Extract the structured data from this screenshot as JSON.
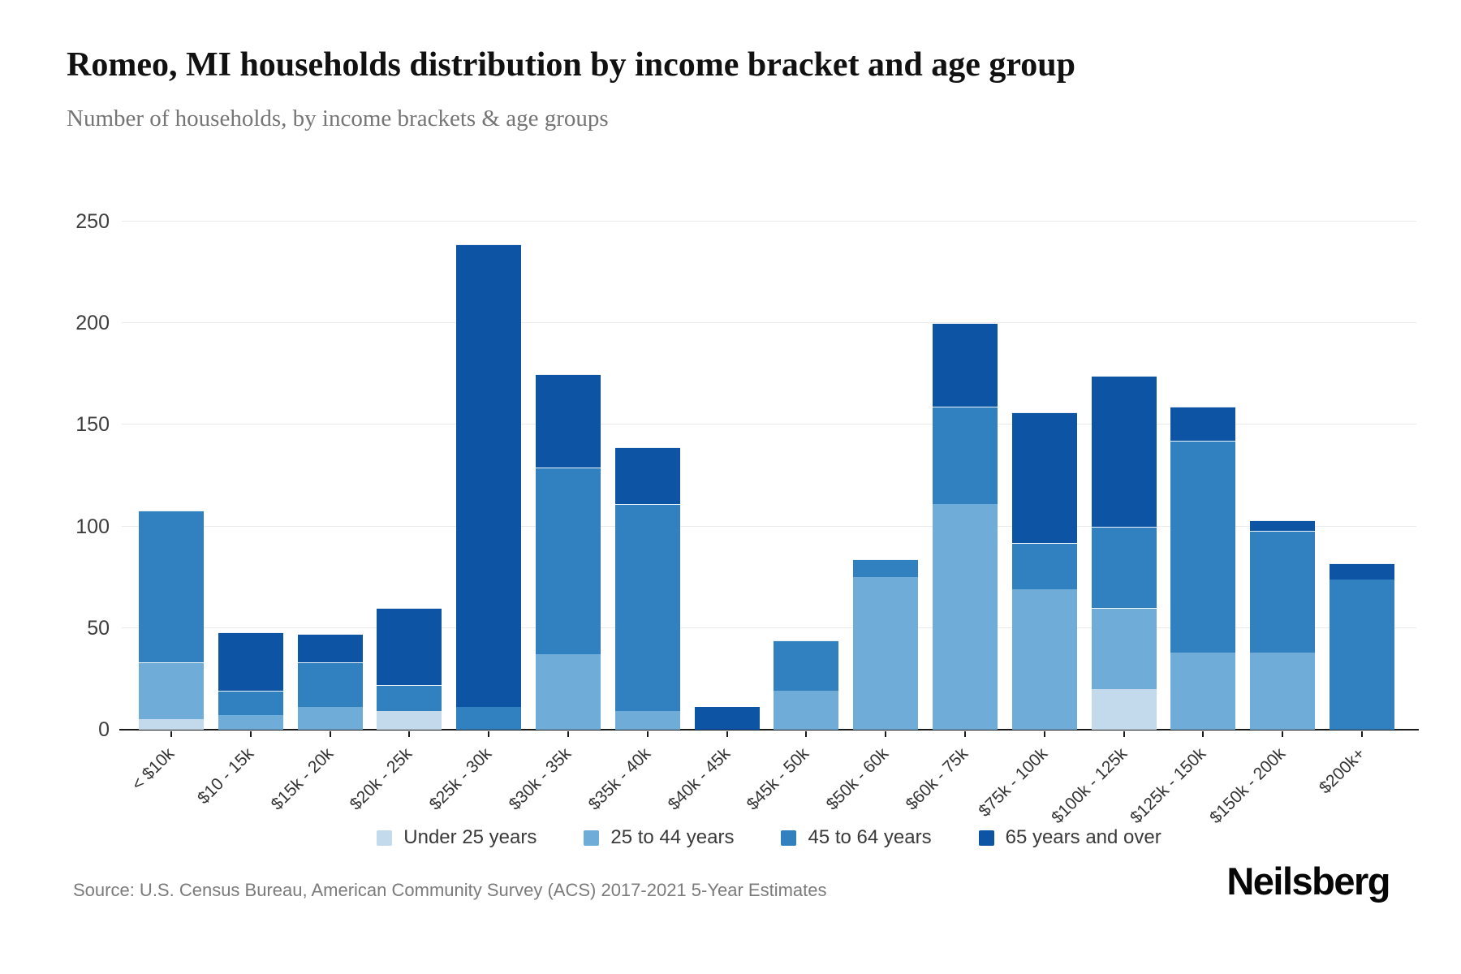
{
  "header": {
    "title": "Romeo, MI households distribution by income bracket and age group",
    "subtitle": "Number of households, by income brackets & age groups"
  },
  "footer": {
    "source": "Source: U.S. Census Bureau, American Community Survey (ACS) 2017-2021 5-Year Estimates",
    "logo": "Neilsberg"
  },
  "chart_data": {
    "type": "bar",
    "stacked": true,
    "title": "Romeo, MI households distribution by income bracket and age group",
    "subtitle": "Number of households, by income brackets & age groups",
    "xlabel": "",
    "ylabel": "Number of households",
    "ylim": [
      0,
      250
    ],
    "yticks": [
      0,
      50,
      100,
      150,
      200,
      250
    ],
    "grid": true,
    "legend_position": "bottom-center",
    "categories": [
      "< $10k",
      "$10 - 15k",
      "$15k - 20k",
      "$20k - 25k",
      "$25k - 30k",
      "$30k - 35k",
      "$35k - 40k",
      "$40k - 45k",
      "$45k - 50k",
      "$50k - 60k",
      "$60k - 75k",
      "$75k - 100k",
      "$100k - 125k",
      "$125k - 150k",
      "$150k - 200k",
      "$200k+"
    ],
    "series": [
      {
        "name": "Under 25 years",
        "color": "#c3d9ec",
        "values": [
          5,
          0,
          0,
          9,
          0,
          0,
          0,
          0,
          0,
          0,
          0,
          0,
          20,
          0,
          0,
          0
        ]
      },
      {
        "name": "25 to 44 years",
        "color": "#6fadd8",
        "values": [
          28,
          7,
          11,
          0,
          0,
          37,
          9,
          0,
          19,
          75,
          111,
          69,
          40,
          38,
          38,
          0
        ]
      },
      {
        "name": "45 to 64 years",
        "color": "#3181c0",
        "values": [
          75,
          12,
          22,
          13,
          11,
          92,
          102,
          0,
          25,
          9,
          48,
          23,
          40,
          104,
          60,
          74
        ]
      },
      {
        "name": "65 years and over",
        "color": "#0d55a4",
        "values": [
          0,
          29,
          14,
          38,
          228,
          46,
          28,
          11,
          0,
          0,
          41,
          64,
          74,
          17,
          5,
          8
        ]
      }
    ],
    "totals": [
      108,
      48,
      47,
      60,
      239,
      175,
      139,
      11,
      44,
      84,
      200,
      156,
      174,
      159,
      103,
      82
    ]
  }
}
